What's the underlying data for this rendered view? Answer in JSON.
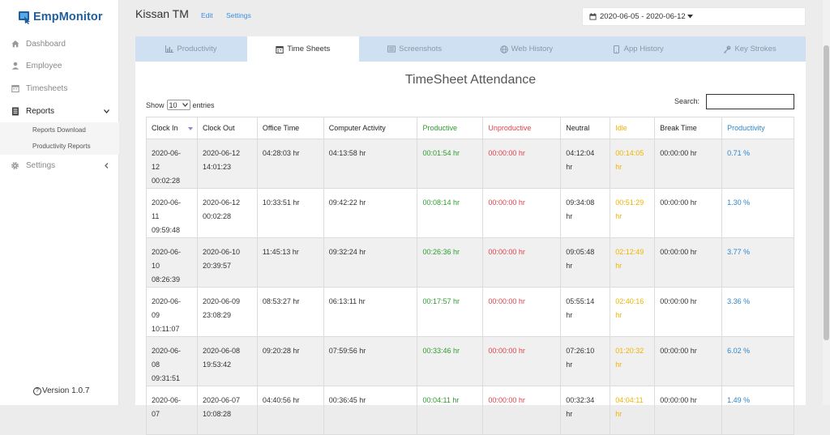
{
  "app": {
    "logo_text": "EmpMonitor",
    "version": "Version 1.0.7",
    "version_icon": "?"
  },
  "sidebar": {
    "items": [
      {
        "label": "Dashboard",
        "icon": "home-icon"
      },
      {
        "label": "Employee",
        "icon": "user-icon"
      },
      {
        "label": "Timesheets",
        "icon": "calendar-icon"
      },
      {
        "label": "Reports",
        "icon": "document-icon"
      },
      {
        "label": "Settings",
        "icon": "gear-icon"
      }
    ],
    "reports_submenu": [
      "Reports Download",
      "Productivity Reports"
    ]
  },
  "header": {
    "user_name": "Kissan TM",
    "edit_label": "Edit",
    "settings_label": "Settings",
    "date_range": "2020-06-05 - 2020-06-12"
  },
  "tabs": [
    {
      "label": "Productivity",
      "icon": "chart-icon"
    },
    {
      "label": "Time Sheets",
      "icon": "calendar-icon"
    },
    {
      "label": "Screenshots",
      "icon": "image-icon"
    },
    {
      "label": "Web History",
      "icon": "globe-icon"
    },
    {
      "label": "App History",
      "icon": "mobile-icon"
    },
    {
      "label": "Key Strokes",
      "icon": "key-icon"
    }
  ],
  "active_tab": "Time Sheets",
  "panel": {
    "title": "TimeSheet Attendance",
    "show_label": "Show",
    "entries_value": "10",
    "entries_label": "entries",
    "search_label": "Search:",
    "search_value": ""
  },
  "table": {
    "headers": [
      "Clock In",
      "Clock Out",
      "Office Time",
      "Computer Activity",
      "Productive",
      "Unproductive",
      "Neutral",
      "Idle",
      "Break Time",
      "Productivity"
    ],
    "rows": [
      {
        "clock_in": "2020-06-\n12\n00:02:28",
        "clock_out": "2020-06-12\n14:01:23",
        "office_time": "04:28:03  hr",
        "computer_activity": "04:13:58  hr",
        "productive": "00:01:54  hr",
        "unproductive": "00:00:00  hr",
        "neutral": "04:12:04\nhr",
        "idle": "00:14:05\nhr",
        "break_time": "00:00:00  hr",
        "productivity": "0.71  %"
      },
      {
        "clock_in": "2020-06-\n11\n09:59:48",
        "clock_out": "2020-06-12\n00:02:28",
        "office_time": "10:33:51  hr",
        "computer_activity": "09:42:22  hr",
        "productive": "00:08:14  hr",
        "unproductive": "00:00:00  hr",
        "neutral": "09:34:08\nhr",
        "idle": "00:51:29\nhr",
        "break_time": "00:00:00  hr",
        "productivity": "1.30  %"
      },
      {
        "clock_in": "2020-06-\n10\n08:26:39",
        "clock_out": "2020-06-10\n20:39:57",
        "office_time": "11:45:13  hr",
        "computer_activity": "09:32:24  hr",
        "productive": "00:26:36  hr",
        "unproductive": "00:00:00  hr",
        "neutral": "09:05:48\nhr",
        "idle": "02:12:49\nhr",
        "break_time": "00:00:00  hr",
        "productivity": "3.77  %"
      },
      {
        "clock_in": "2020-06-\n09\n10:11:07",
        "clock_out": "2020-06-09\n23:08:29",
        "office_time": "08:53:27  hr",
        "computer_activity": "06:13:11  hr",
        "productive": "00:17:57  hr",
        "unproductive": "00:00:00  hr",
        "neutral": "05:55:14\nhr",
        "idle": "02:40:16\nhr",
        "break_time": "00:00:00  hr",
        "productivity": "3.36  %"
      },
      {
        "clock_in": "2020-06-\n08\n09:31:51",
        "clock_out": "2020-06-08\n19:53:42",
        "office_time": "09:20:28  hr",
        "computer_activity": "07:59:56  hr",
        "productive": "00:33:46  hr",
        "unproductive": "00:00:00  hr",
        "neutral": "07:26:10\nhr",
        "idle": "01:20:32\nhr",
        "break_time": "00:00:00  hr",
        "productivity": "6.02  %"
      },
      {
        "clock_in": "2020-06-\n07",
        "clock_out": "2020-06-07\n10:08:28",
        "office_time": "04:40:56  hr",
        "computer_activity": "00:36:45  hr",
        "productive": "00:04:11  hr",
        "unproductive": "00:00:00  hr",
        "neutral": "00:32:34\nhr",
        "idle": "04:04:11\nhr",
        "break_time": "00:00:00  hr",
        "productivity": "1.49  %"
      }
    ]
  },
  "colors": {
    "brand": "#1f5f9e",
    "link": "#3a8dde",
    "tab_bar": "#cfe0f2",
    "productive": "#2e9c2e",
    "unproductive": "#e0424c",
    "idle": "#f0b400",
    "productivity": "#2e86cc"
  }
}
